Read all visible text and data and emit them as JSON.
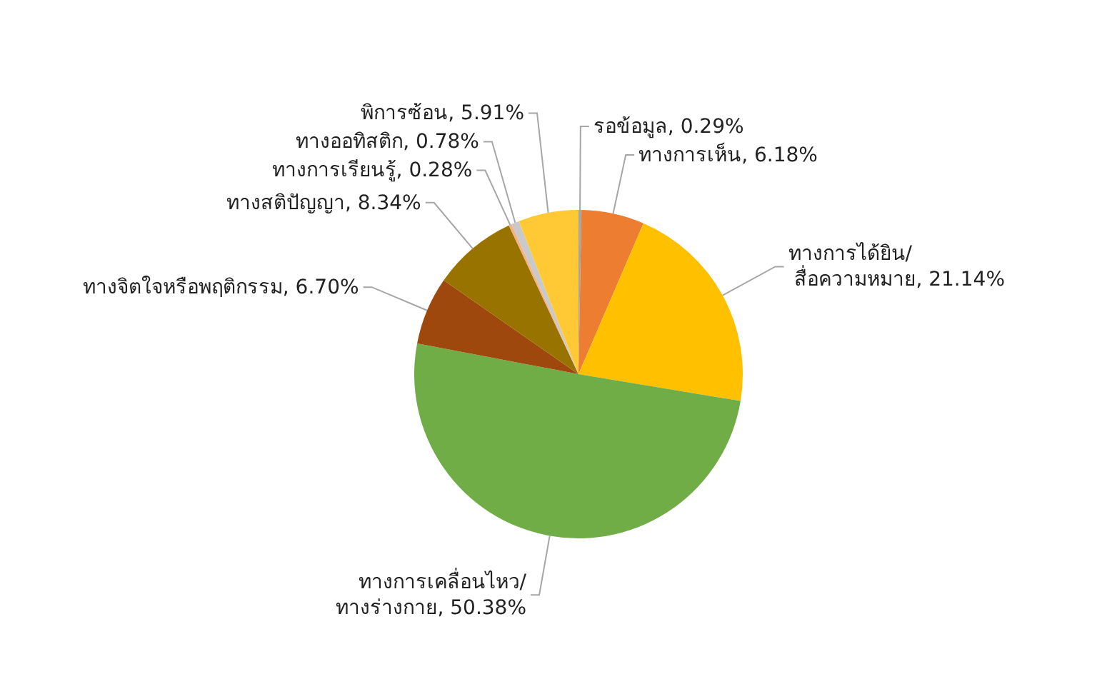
{
  "chart_data": {
    "type": "pie",
    "categories": [
      "รอข้อมูล",
      "ทางการเห็น",
      "ทางการได้ยิน/สื่อความหมาย",
      "ทางการเคลื่อนไหว/ทางร่างกาย",
      "ทางจิตใจหรือพฤติกรรม",
      "ทางสติปัญญา",
      "ทางการเรียนรู้",
      "ทางออทิสติก",
      "พิการซ้อน"
    ],
    "values": [
      0.29,
      6.18,
      21.14,
      50.38,
      6.7,
      8.34,
      0.28,
      0.78,
      5.91
    ],
    "value_labels": [
      "0.29%",
      "6.18%",
      "21.14%",
      "50.38%",
      "6.70%",
      "8.34%",
      "0.28%",
      "0.78%",
      "5.91%"
    ],
    "colors": [
      "#a5a5a5",
      "#ed7d31",
      "#ffc000",
      "#70ad47",
      "#9e480e",
      "#997300",
      "#f4b183",
      "#c9c9c9",
      "#ffc936"
    ]
  }
}
